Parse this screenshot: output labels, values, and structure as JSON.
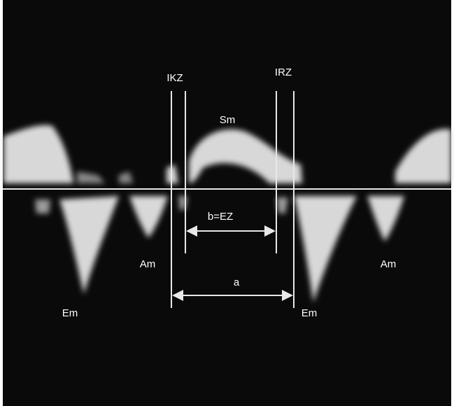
{
  "labels": {
    "ikz": "IKZ",
    "irz": "IRZ",
    "sm": "Sm",
    "b": "b=EZ",
    "am_left": "Am",
    "am_right": "Am",
    "a": "a",
    "em_left": "Em",
    "em_right": "Em"
  }
}
